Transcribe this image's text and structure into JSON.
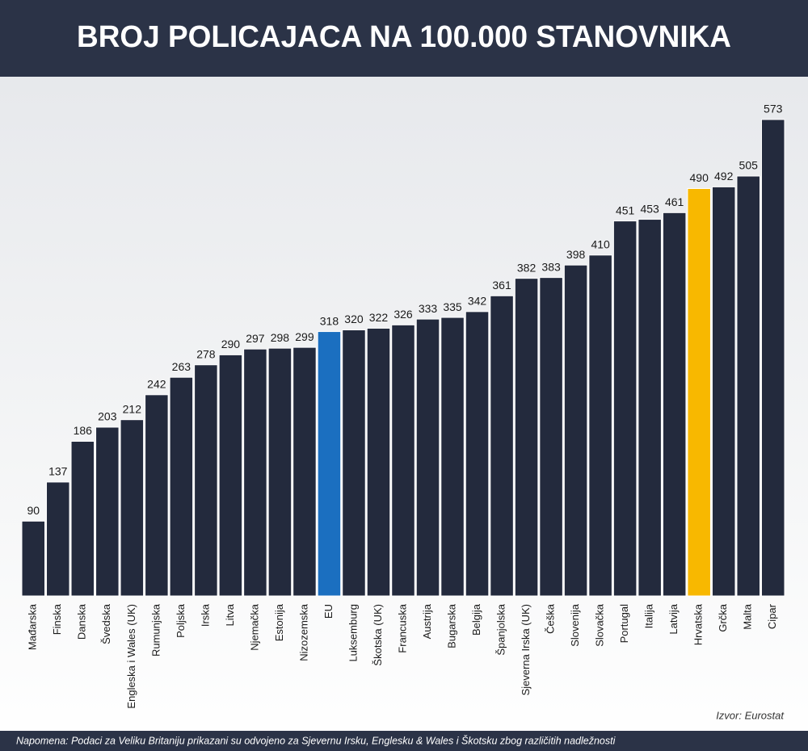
{
  "chart_data": {
    "type": "bar",
    "title": "BROJ POLICAJACA NA 100.000 STANOVNIKA",
    "categories": [
      "Mađarska",
      "Finska",
      "Danska",
      "Švedska",
      "Engleska i Wales (UK)",
      "Rumunjska",
      "Poljska",
      "Irska",
      "Litva",
      "Njemačka",
      "Estonija",
      "Nizozemska",
      "EU",
      "Luksemburg",
      "Škotska (UK)",
      "Francuska",
      "Austrija",
      "Bugarska",
      "Belgija",
      "Španjolska",
      "Sjeverna Irska (UK)",
      "Češka",
      "Slovenija",
      "Slovačka",
      "Portugal",
      "Italija",
      "Latvija",
      "Hrvatska",
      "Grčka",
      "Malta",
      "Cipar"
    ],
    "values": [
      90,
      137,
      186,
      203,
      212,
      242,
      263,
      278,
      290,
      297,
      298,
      299,
      318,
      320,
      322,
      326,
      333,
      335,
      342,
      361,
      382,
      383,
      398,
      410,
      451,
      453,
      461,
      490,
      492,
      505,
      573
    ],
    "colors": [
      "#232a3d",
      "#232a3d",
      "#232a3d",
      "#232a3d",
      "#232a3d",
      "#232a3d",
      "#232a3d",
      "#232a3d",
      "#232a3d",
      "#232a3d",
      "#232a3d",
      "#232a3d",
      "#1b6fc0",
      "#232a3d",
      "#232a3d",
      "#232a3d",
      "#232a3d",
      "#232a3d",
      "#232a3d",
      "#232a3d",
      "#232a3d",
      "#232a3d",
      "#232a3d",
      "#232a3d",
      "#232a3d",
      "#232a3d",
      "#232a3d",
      "#f8b800",
      "#232a3d",
      "#232a3d",
      "#232a3d"
    ],
    "source": "Izvor: Eurostat",
    "note": "Napomena: Podaci za Veliku Britaniju prikazani su odvojeno za Sjevernu Irsku, Englesku & Wales i Škotsku zbog različitih nadležnosti"
  }
}
